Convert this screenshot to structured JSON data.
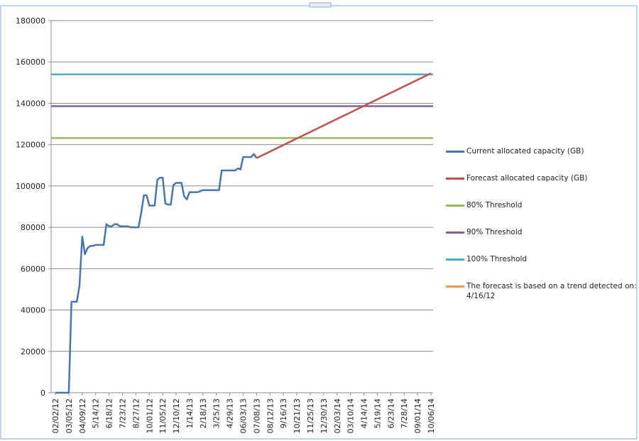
{
  "chart_data": {
    "type": "line",
    "categories": [
      "02/02/12",
      null,
      null,
      null,
      null,
      "03/05/12",
      null,
      null,
      null,
      null,
      "04/09/12",
      null,
      null,
      null,
      null,
      "5/14/12",
      null,
      null,
      null,
      null,
      "6/18/12",
      null,
      null,
      null,
      null,
      "7/23/12",
      null,
      null,
      null,
      null,
      "8/27/12",
      null,
      null,
      null,
      null,
      "10/01/12",
      null,
      null,
      null,
      null,
      "11/05/12",
      null,
      null,
      null,
      null,
      "12/10/12",
      null,
      null,
      null,
      null,
      "1/14/13",
      null,
      null,
      null,
      null,
      "2/18/13",
      null,
      null,
      null,
      null,
      "3/25/13",
      null,
      null,
      null,
      null,
      "4/29/13",
      null,
      null,
      null,
      null,
      "06/03/13",
      null,
      null,
      null,
      null,
      "07/08/13",
      null,
      null,
      null,
      null,
      "08/12/13",
      null,
      null,
      null,
      null,
      "9/16/13",
      null,
      null,
      null,
      null,
      "10/21/13",
      null,
      null,
      null,
      null,
      "11/25/13",
      null,
      null,
      null,
      null,
      "12/30/13",
      null,
      null,
      null,
      null,
      "02/03/14",
      null,
      null,
      null,
      null,
      "03/10/14",
      null,
      null,
      null,
      null,
      "4/14/14",
      null,
      null,
      null,
      null,
      "5/19/14",
      null,
      null,
      null,
      null,
      "6/23/14",
      null,
      null,
      null,
      null,
      "7/28/14",
      null,
      null,
      null,
      null,
      "09/01/14",
      null,
      null,
      null,
      null,
      "10/06/14"
    ],
    "series": [
      {
        "name": "Current allocated capacity (GB)",
        "color": "#4a74b0",
        "values": [
          0,
          0,
          0,
          0,
          0,
          0,
          44000,
          44000,
          44000,
          52000,
          75500,
          67000,
          70000,
          71000,
          71000,
          71500,
          71500,
          71500,
          71500,
          81500,
          80500,
          80500,
          81500,
          81500,
          80500,
          80500,
          80500,
          80500,
          80000,
          80000,
          80000,
          80000,
          87000,
          95500,
          95500,
          90500,
          90500,
          90500,
          103000,
          104000,
          104000,
          91500,
          91000,
          91000,
          100500,
          101500,
          101500,
          101500,
          95000,
          93500,
          97000,
          97000,
          97000,
          97000,
          97500,
          98000,
          98000,
          98000,
          98000,
          98000,
          98000,
          98000,
          107500,
          107500,
          107500,
          107500,
          107500,
          107500,
          108500,
          108000,
          114000,
          114000,
          114000,
          114000,
          115500,
          113500,
          null,
          null,
          null,
          null,
          null,
          null,
          null,
          null,
          null,
          null,
          null,
          null,
          null,
          null,
          null,
          null,
          null,
          null,
          null,
          null,
          null,
          null,
          null,
          null,
          null,
          null,
          null,
          null,
          null,
          null,
          null,
          null,
          null,
          null,
          null,
          null,
          null,
          null,
          null,
          null,
          null,
          null,
          null,
          null,
          null,
          null,
          null,
          null,
          null,
          null,
          null,
          null,
          null,
          null,
          null,
          null,
          null,
          null,
          null,
          null,
          null,
          null,
          null,
          null,
          null
        ]
      },
      {
        "name": "Forecast allocated capacity (GB)",
        "color": "#c0504d",
        "values": [
          null,
          null,
          null,
          null,
          null,
          null,
          null,
          null,
          null,
          null,
          null,
          null,
          null,
          null,
          null,
          null,
          null,
          null,
          null,
          null,
          null,
          null,
          null,
          null,
          null,
          null,
          null,
          null,
          null,
          null,
          null,
          null,
          null,
          null,
          null,
          null,
          null,
          null,
          null,
          null,
          null,
          null,
          null,
          null,
          null,
          null,
          null,
          null,
          null,
          null,
          null,
          null,
          null,
          null,
          null,
          null,
          null,
          null,
          null,
          null,
          null,
          null,
          null,
          null,
          null,
          null,
          null,
          null,
          null,
          null,
          null,
          null,
          null,
          null,
          null,
          113500,
          114131,
          114762,
          115392,
          116023,
          116654,
          117285,
          117915,
          118546,
          119177,
          119808,
          120438,
          121069,
          121700,
          122331,
          122962,
          123592,
          124223,
          124854,
          125485,
          126115,
          126746,
          127377,
          128008,
          128638,
          129269,
          129900,
          130531,
          131162,
          131792,
          132423,
          133054,
          133685,
          134315,
          134946,
          135577,
          136208,
          136838,
          137469,
          138100,
          138731,
          139362,
          139992,
          140623,
          141254,
          141885,
          142515,
          143146,
          143777,
          144408,
          145038,
          145669,
          146300,
          146931,
          147562,
          148192,
          148823,
          149454,
          150085,
          150715,
          151346,
          151977,
          152608,
          153238,
          153869,
          154500
        ]
      }
    ],
    "thresholds": [
      {
        "name": "80% Threshold",
        "color": "#9bbb59",
        "value": 123200
      },
      {
        "name": "90% Threshold",
        "color": "#8064a2",
        "value": 138600
      },
      {
        "name": "100% Threshold",
        "color": "#4bacc6",
        "value": 154000
      }
    ],
    "legend_note": {
      "name": "The forecast is based on a trend detected on: 4/16/12",
      "color": "#f79646"
    },
    "ylim": [
      0,
      180000
    ],
    "yticks": [
      0,
      20000,
      40000,
      60000,
      80000,
      100000,
      120000,
      140000,
      160000,
      180000
    ],
    "grid": true,
    "legend": "right"
  }
}
